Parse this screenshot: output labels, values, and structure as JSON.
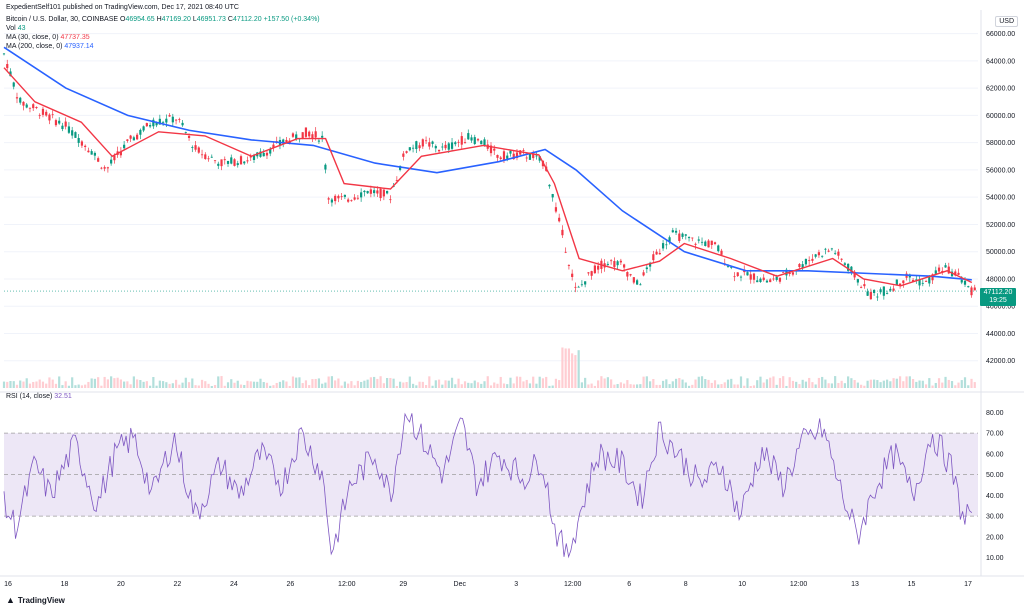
{
  "header": {
    "published": "ExpedientSelf101 published on TradingView.com, Dec 17, 2021 08:40 UTC",
    "symbol": "Bitcoin / U.S. Dollar, 30, COINBASE",
    "open_label": "O",
    "open": "46954.65",
    "high_label": "H",
    "high": "47169.20",
    "low_label": "L",
    "low": "46951.73",
    "close_label": "C",
    "close": "47112.20",
    "change": "+157.50 (+0.34%)",
    "vol_label": "Vol",
    "vol": "43",
    "ma30_label": "MA (30, close, 0)",
    "ma30": "47737.35",
    "ma200_label": "MA (200, close, 0)",
    "ma200": "47937.14",
    "rsi_label": "RSI (14, close)",
    "rsi": "32.51"
  },
  "currency_badge": "USD",
  "last_price": {
    "value": "47112.20",
    "countdown": "19:25"
  },
  "branding": {
    "logo_text": "TradingView",
    "logo_icon": "tradingview-logo-icon"
  },
  "colors": {
    "up": "#089981",
    "down": "#f23645",
    "ma30": "#f23645",
    "ma200": "#2962ff",
    "rsi": "#7e57c2",
    "rsi_band": "#ede7f6",
    "vol_up": "#b2dfdb",
    "vol_down": "#ffcdd2"
  },
  "chart_data": [
    {
      "type": "candlestick",
      "title": "Bitcoin / U.S. Dollar, 30, COINBASE",
      "ylim": [
        40000,
        67000
      ],
      "y_ticks": [
        "66000.00",
        "64000.00",
        "62000.00",
        "60000.00",
        "58000.00",
        "56000.00",
        "54000.00",
        "52000.00",
        "50000.00",
        "48000.00",
        "46000.00",
        "44000.00",
        "42000.00"
      ],
      "x_ticks": [
        "16",
        "18",
        "20",
        "22",
        "24",
        "26",
        "12:00",
        "29",
        "Dec",
        "3",
        "12:00",
        "6",
        "8",
        "10",
        "12:00",
        "13",
        "15",
        "17"
      ],
      "price_path": [
        {
          "x": 0,
          "y": 64500
        },
        {
          "x": 0.5,
          "y": 61000
        },
        {
          "x": 1.0,
          "y": 60500
        },
        {
          "x": 2.0,
          "y": 59200
        },
        {
          "x": 2.8,
          "y": 57500
        },
        {
          "x": 3.3,
          "y": 56000
        },
        {
          "x": 4.0,
          "y": 58000
        },
        {
          "x": 4.8,
          "y": 59500
        },
        {
          "x": 5.6,
          "y": 59800
        },
        {
          "x": 6.2,
          "y": 57500
        },
        {
          "x": 7.0,
          "y": 56500
        },
        {
          "x": 8.0,
          "y": 56800
        },
        {
          "x": 9.0,
          "y": 58000
        },
        {
          "x": 9.8,
          "y": 58800
        },
        {
          "x": 10.3,
          "y": 58300
        },
        {
          "x": 10.5,
          "y": 54000
        },
        {
          "x": 11.0,
          "y": 53800
        },
        {
          "x": 11.8,
          "y": 54500
        },
        {
          "x": 12.5,
          "y": 54100
        },
        {
          "x": 13.0,
          "y": 57500
        },
        {
          "x": 13.6,
          "y": 58000
        },
        {
          "x": 14.2,
          "y": 57500
        },
        {
          "x": 15.0,
          "y": 58400
        },
        {
          "x": 15.5,
          "y": 58000
        },
        {
          "x": 16.0,
          "y": 57000
        },
        {
          "x": 16.8,
          "y": 57200
        },
        {
          "x": 17.5,
          "y": 56500
        },
        {
          "x": 17.7,
          "y": 54500
        },
        {
          "x": 18.2,
          "y": 50000
        },
        {
          "x": 18.5,
          "y": 47000
        },
        {
          "x": 19.0,
          "y": 48500
        },
        {
          "x": 19.5,
          "y": 49300
        },
        {
          "x": 20.0,
          "y": 49000
        },
        {
          "x": 20.5,
          "y": 47500
        },
        {
          "x": 21.0,
          "y": 49500
        },
        {
          "x": 21.6,
          "y": 51300
        },
        {
          "x": 22.3,
          "y": 50800
        },
        {
          "x": 23.0,
          "y": 50500
        },
        {
          "x": 23.6,
          "y": 48500
        },
        {
          "x": 24.2,
          "y": 48200
        },
        {
          "x": 24.8,
          "y": 47800
        },
        {
          "x": 25.5,
          "y": 48600
        },
        {
          "x": 26.3,
          "y": 49800
        },
        {
          "x": 26.8,
          "y": 50200
        },
        {
          "x": 27.5,
          "y": 48300
        },
        {
          "x": 28.0,
          "y": 46800
        },
        {
          "x": 28.6,
          "y": 47200
        },
        {
          "x": 29.2,
          "y": 48200
        },
        {
          "x": 29.8,
          "y": 47600
        },
        {
          "x": 30.3,
          "y": 48800
        },
        {
          "x": 30.8,
          "y": 48400
        },
        {
          "x": 31.3,
          "y": 47112
        }
      ],
      "ma30_path": [
        {
          "x": 0,
          "y": 63500
        },
        {
          "x": 1.0,
          "y": 61000
        },
        {
          "x": 2.5,
          "y": 59500
        },
        {
          "x": 3.5,
          "y": 57000
        },
        {
          "x": 5.0,
          "y": 58800
        },
        {
          "x": 6.5,
          "y": 58500
        },
        {
          "x": 8.0,
          "y": 57000
        },
        {
          "x": 9.5,
          "y": 58300
        },
        {
          "x": 10.4,
          "y": 58300
        },
        {
          "x": 11.0,
          "y": 55000
        },
        {
          "x": 12.5,
          "y": 54600
        },
        {
          "x": 13.5,
          "y": 57000
        },
        {
          "x": 15.5,
          "y": 57800
        },
        {
          "x": 17.3,
          "y": 57100
        },
        {
          "x": 17.8,
          "y": 55000
        },
        {
          "x": 18.6,
          "y": 49500
        },
        {
          "x": 20.0,
          "y": 48600
        },
        {
          "x": 21.2,
          "y": 49300
        },
        {
          "x": 22.0,
          "y": 50600
        },
        {
          "x": 23.5,
          "y": 49500
        },
        {
          "x": 25.0,
          "y": 48200
        },
        {
          "x": 26.8,
          "y": 49500
        },
        {
          "x": 27.8,
          "y": 48000
        },
        {
          "x": 29.0,
          "y": 47500
        },
        {
          "x": 30.5,
          "y": 48600
        },
        {
          "x": 31.3,
          "y": 47737
        }
      ],
      "ma200_path": [
        {
          "x": 0,
          "y": 65000
        },
        {
          "x": 2.0,
          "y": 62000
        },
        {
          "x": 4.0,
          "y": 60000
        },
        {
          "x": 6.0,
          "y": 58900
        },
        {
          "x": 8.0,
          "y": 58200
        },
        {
          "x": 10.0,
          "y": 57800
        },
        {
          "x": 12.0,
          "y": 56500
        },
        {
          "x": 14.0,
          "y": 55800
        },
        {
          "x": 16.0,
          "y": 56600
        },
        {
          "x": 17.5,
          "y": 57500
        },
        {
          "x": 18.5,
          "y": 56000
        },
        {
          "x": 20.0,
          "y": 53000
        },
        {
          "x": 22.0,
          "y": 50000
        },
        {
          "x": 24.0,
          "y": 48600
        },
        {
          "x": 26.0,
          "y": 48600
        },
        {
          "x": 28.0,
          "y": 48400
        },
        {
          "x": 30.0,
          "y": 48200
        },
        {
          "x": 31.3,
          "y": 47937
        }
      ]
    },
    {
      "type": "line",
      "title": "RSI (14, close)",
      "ylim": [
        5,
        85
      ],
      "y_ticks": [
        "80.00",
        "70.00",
        "60.00",
        "50.00",
        "40.00",
        "30.00",
        "20.00",
        "10.00"
      ],
      "bands": {
        "upper": 70,
        "middle": 50,
        "lower": 30
      },
      "rsi_path": [
        {
          "x": 0,
          "y": 35
        },
        {
          "x": 0.4,
          "y": 25
        },
        {
          "x": 1.0,
          "y": 55
        },
        {
          "x": 1.5,
          "y": 40
        },
        {
          "x": 2.3,
          "y": 65
        },
        {
          "x": 3.0,
          "y": 35
        },
        {
          "x": 3.6,
          "y": 60
        },
        {
          "x": 4.2,
          "y": 68
        },
        {
          "x": 4.8,
          "y": 40
        },
        {
          "x": 5.5,
          "y": 68
        },
        {
          "x": 6.2,
          "y": 30
        },
        {
          "x": 7.0,
          "y": 55
        },
        {
          "x": 7.6,
          "y": 40
        },
        {
          "x": 8.3,
          "y": 60
        },
        {
          "x": 9.0,
          "y": 45
        },
        {
          "x": 9.6,
          "y": 70
        },
        {
          "x": 10.3,
          "y": 50
        },
        {
          "x": 10.6,
          "y": 12
        },
        {
          "x": 11.2,
          "y": 45
        },
        {
          "x": 12.0,
          "y": 60
        },
        {
          "x": 12.5,
          "y": 40
        },
        {
          "x": 13.0,
          "y": 82
        },
        {
          "x": 13.6,
          "y": 65
        },
        {
          "x": 14.2,
          "y": 50
        },
        {
          "x": 14.8,
          "y": 75
        },
        {
          "x": 15.3,
          "y": 45
        },
        {
          "x": 16.0,
          "y": 60
        },
        {
          "x": 16.8,
          "y": 48
        },
        {
          "x": 17.4,
          "y": 58
        },
        {
          "x": 17.8,
          "y": 25
        },
        {
          "x": 18.2,
          "y": 10
        },
        {
          "x": 18.6,
          "y": 30
        },
        {
          "x": 19.2,
          "y": 60
        },
        {
          "x": 20.0,
          "y": 55
        },
        {
          "x": 20.6,
          "y": 38
        },
        {
          "x": 21.2,
          "y": 72
        },
        {
          "x": 21.8,
          "y": 60
        },
        {
          "x": 22.5,
          "y": 45
        },
        {
          "x": 23.2,
          "y": 55
        },
        {
          "x": 23.8,
          "y": 30
        },
        {
          "x": 24.5,
          "y": 62
        },
        {
          "x": 25.2,
          "y": 45
        },
        {
          "x": 25.8,
          "y": 65
        },
        {
          "x": 26.5,
          "y": 72
        },
        {
          "x": 27.0,
          "y": 45
        },
        {
          "x": 27.6,
          "y": 20
        },
        {
          "x": 28.2,
          "y": 45
        },
        {
          "x": 28.8,
          "y": 60
        },
        {
          "x": 29.4,
          "y": 40
        },
        {
          "x": 30.0,
          "y": 70
        },
        {
          "x": 30.6,
          "y": 55
        },
        {
          "x": 31.0,
          "y": 30
        },
        {
          "x": 31.3,
          "y": 32.51
        }
      ]
    }
  ]
}
